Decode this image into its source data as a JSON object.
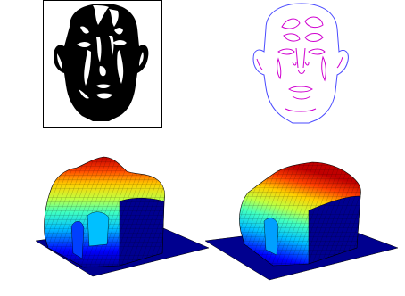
{
  "figure": {
    "panels": [
      {
        "id": "binary-face",
        "kind": "binary-image",
        "foreground": "#000000",
        "background": "#ffffff",
        "frame": "#000000"
      },
      {
        "id": "contour-face",
        "kind": "contour-outline",
        "colors": [
          "#4a4aff",
          "#d000d0"
        ]
      },
      {
        "id": "surface-left",
        "kind": "3d-surface",
        "colormap": "jet"
      },
      {
        "id": "surface-right",
        "kind": "3d-surface",
        "colormap": "jet"
      }
    ]
  },
  "colormap": {
    "name": "jet",
    "stops": [
      "#00008f",
      "#0000ff",
      "#00a0ff",
      "#00ffff",
      "#80ff80",
      "#ffff00",
      "#ff8000",
      "#ff0000",
      "#800000"
    ]
  }
}
